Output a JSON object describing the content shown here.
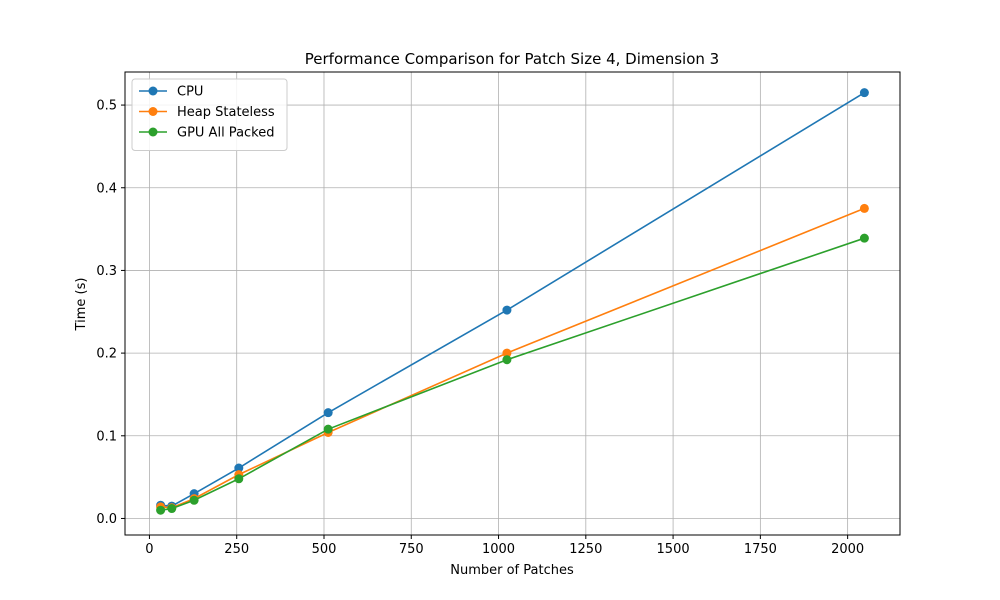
{
  "chart_data": {
    "type": "line",
    "title": "Performance Comparison for Patch Size 4, Dimension 3",
    "xlabel": "Number of Patches",
    "ylabel": "Time (s)",
    "xlim": [
      -70,
      2150
    ],
    "ylim": [
      -0.02,
      0.54
    ],
    "xticks": [
      0,
      250,
      500,
      750,
      1000,
      1250,
      1500,
      1750,
      2000
    ],
    "yticks": [
      0.0,
      0.1,
      0.2,
      0.3,
      0.4,
      0.5
    ],
    "ytick_labels": [
      "0.0",
      "0.1",
      "0.2",
      "0.3",
      "0.4",
      "0.5"
    ],
    "grid": true,
    "legend_position": "upper-left",
    "x": [
      32,
      64,
      128,
      256,
      512,
      1024,
      2048
    ],
    "series": [
      {
        "name": "CPU",
        "color": "#1f77b4",
        "values": [
          0.016,
          0.015,
          0.03,
          0.061,
          0.128,
          0.252,
          0.515
        ]
      },
      {
        "name": "Heap Stateless",
        "color": "#ff7f0e",
        "values": [
          0.014,
          0.013,
          0.024,
          0.053,
          0.104,
          0.2,
          0.375
        ]
      },
      {
        "name": "GPU All Packed",
        "color": "#2ca02c",
        "values": [
          0.01,
          0.012,
          0.022,
          0.048,
          0.108,
          0.192,
          0.339
        ]
      }
    ]
  }
}
